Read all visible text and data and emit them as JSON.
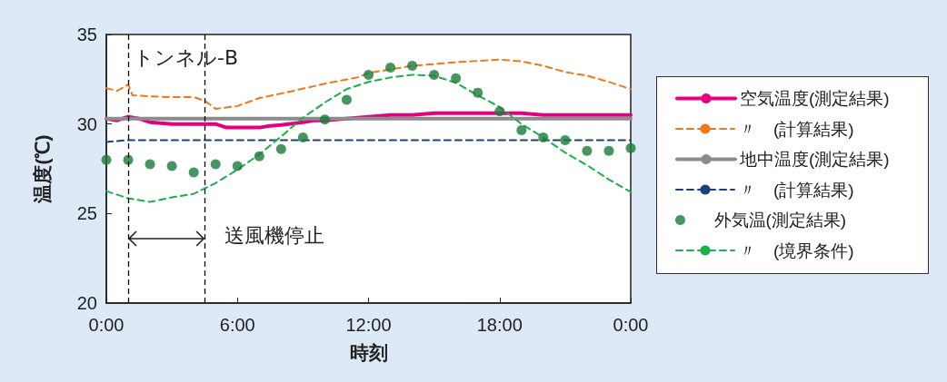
{
  "chart_data": {
    "type": "line",
    "xlabel": "時刻",
    "ylabel": "温度(℃)",
    "xlim": [
      0,
      24
    ],
    "ylim": [
      20,
      35
    ],
    "xticks": [
      {
        "value": 0,
        "label": "0:00"
      },
      {
        "value": 6,
        "label": "6:00"
      },
      {
        "value": 12,
        "label": "12:00"
      },
      {
        "value": 18,
        "label": "18:00"
      },
      {
        "value": 24,
        "label": "0:00"
      }
    ],
    "yticks": [
      20,
      25,
      30,
      35
    ],
    "grid": false,
    "legend": "right",
    "marker": "none",
    "annotations": [
      "トンネル-B",
      {
        "text": "送風機停止",
        "x": 4.5,
        "y": 23.6
      }
    ],
    "ref_lines": [
      {
        "axis": "x",
        "value": 1,
        "label": null,
        "color": "#000000",
        "line_style": "dashed"
      },
      {
        "axis": "x",
        "value": 4.5,
        "label": null,
        "color": "#000000",
        "line_style": "dashed"
      }
    ],
    "series": [
      {
        "name": "空気温度(測定結果)",
        "color": "#e4007f",
        "line_style": "solid",
        "x": [
          0,
          0.5,
          1,
          1.5,
          2,
          3,
          4,
          4.5,
          5,
          5.5,
          6,
          7,
          7.5,
          8,
          9,
          9.5,
          10,
          11,
          12,
          13,
          14,
          15,
          16,
          17,
          18,
          19,
          20,
          21,
          22,
          23,
          24
        ],
        "values": [
          30.3,
          30.2,
          30.4,
          30.3,
          30.1,
          30.0,
          30.0,
          30.0,
          30.0,
          29.8,
          29.8,
          29.8,
          29.9,
          29.95,
          30.1,
          30.2,
          30.2,
          30.3,
          30.4,
          30.5,
          30.5,
          30.6,
          30.6,
          30.6,
          30.6,
          30.6,
          30.5,
          30.5,
          30.5,
          30.5,
          30.5
        ]
      },
      {
        "name": "〃　(計算結果)",
        "color": "#f07818",
        "line_style": "dashed",
        "x": [
          0,
          0.5,
          1,
          1.2,
          2,
          3,
          4,
          4.5,
          5,
          6,
          7,
          8,
          10,
          11.5,
          12,
          14,
          16,
          18,
          19,
          20,
          21,
          22,
          23,
          24
        ],
        "values": [
          32.0,
          31.85,
          32.2,
          31.6,
          31.55,
          31.5,
          31.5,
          31.3,
          30.85,
          31.0,
          31.45,
          31.7,
          32.25,
          32.6,
          32.85,
          33.25,
          33.45,
          33.6,
          33.5,
          33.25,
          32.9,
          32.7,
          32.35,
          31.95
        ]
      },
      {
        "name": "地中温度(測定結果)",
        "color": "#8c8c8c",
        "line_style": "solid",
        "x": [
          0,
          24
        ],
        "values": [
          30.3,
          30.3
        ]
      },
      {
        "name": "〃　(計算結果)",
        "color": "#1f3f7a",
        "line_style": "dashed",
        "x": [
          0,
          1,
          24
        ],
        "values": [
          29.0,
          29.1,
          29.1
        ]
      },
      {
        "name": "外気温(測定結果)",
        "type": "scatter",
        "color": "#1a7a3a",
        "marker": "circle",
        "x": [
          0,
          1,
          2,
          3,
          4,
          5,
          6,
          7,
          8,
          9,
          10,
          11,
          12,
          13,
          14,
          15,
          16,
          17,
          18,
          19,
          20,
          21,
          22,
          23,
          24
        ],
        "values": [
          28.0,
          28.0,
          27.75,
          27.65,
          27.3,
          27.75,
          27.65,
          28.2,
          28.6,
          29.25,
          30.25,
          31.35,
          32.75,
          33.15,
          33.25,
          32.75,
          32.55,
          31.75,
          30.7,
          29.65,
          29.25,
          29.1,
          28.5,
          28.5,
          28.65
        ]
      },
      {
        "name": "〃　(境界条件)",
        "color": "#1ab04a",
        "line_style": "dashed",
        "x": [
          0,
          1,
          2,
          3,
          4,
          5,
          6,
          7,
          8,
          9,
          10,
          11,
          12,
          13,
          14,
          15,
          16,
          17,
          18,
          19,
          20,
          21,
          22,
          23,
          24
        ],
        "values": [
          26.25,
          25.85,
          25.65,
          25.9,
          26.1,
          26.7,
          27.45,
          28.3,
          29.3,
          30.35,
          31.2,
          31.95,
          32.35,
          32.6,
          32.75,
          32.7,
          32.3,
          31.6,
          30.95,
          30.0,
          29.25,
          28.4,
          27.7,
          26.9,
          26.2
        ]
      }
    ]
  }
}
